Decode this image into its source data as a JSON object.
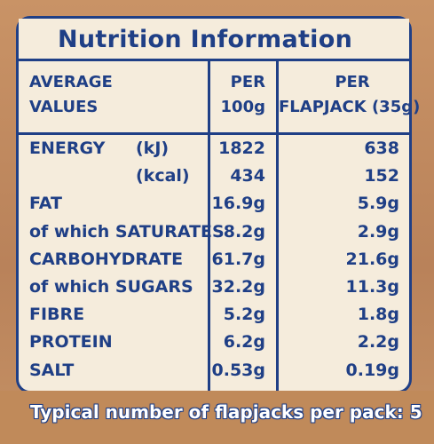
{
  "title": "Nutrition Information",
  "header": {
    "col1": [
      "AVERAGE",
      "VALUES"
    ],
    "col2": [
      "PER",
      "100g"
    ],
    "col3": [
      "PER",
      "FLAPJACK (35g)"
    ]
  },
  "rows": [
    {
      "label": "ENERGY",
      "unit": "(kJ)",
      "per100": "1822",
      "perFlapjack": "638"
    },
    {
      "label": "",
      "unit": "(kcal)",
      "per100": "434",
      "perFlapjack": "152"
    },
    {
      "label": "FAT",
      "unit": "",
      "per100": "16.9g",
      "perFlapjack": "5.9g"
    },
    {
      "label": "of which SATURATES",
      "unit": "",
      "per100": "8.2g",
      "perFlapjack": "2.9g"
    },
    {
      "label": "CARBOHYDRATE",
      "unit": "",
      "per100": "61.7g",
      "perFlapjack": "21.6g"
    },
    {
      "label": "of which SUGARS",
      "unit": "",
      "per100": "32.2g",
      "perFlapjack": "11.3g"
    },
    {
      "label": "FIBRE",
      "unit": "",
      "per100": "5.2g",
      "perFlapjack": "1.8g"
    },
    {
      "label": "PROTEIN",
      "unit": "",
      "per100": "6.2g",
      "perFlapjack": "2.2g"
    },
    {
      "label": "SALT",
      "unit": "",
      "per100": "0.53g",
      "perFlapjack": "0.19g"
    }
  ],
  "footer": "Typical number of flapjacks per pack: 5",
  "colors": {
    "ink": "#1f3f86",
    "panel": "#f5ecdc",
    "background": "#c08a5a"
  }
}
